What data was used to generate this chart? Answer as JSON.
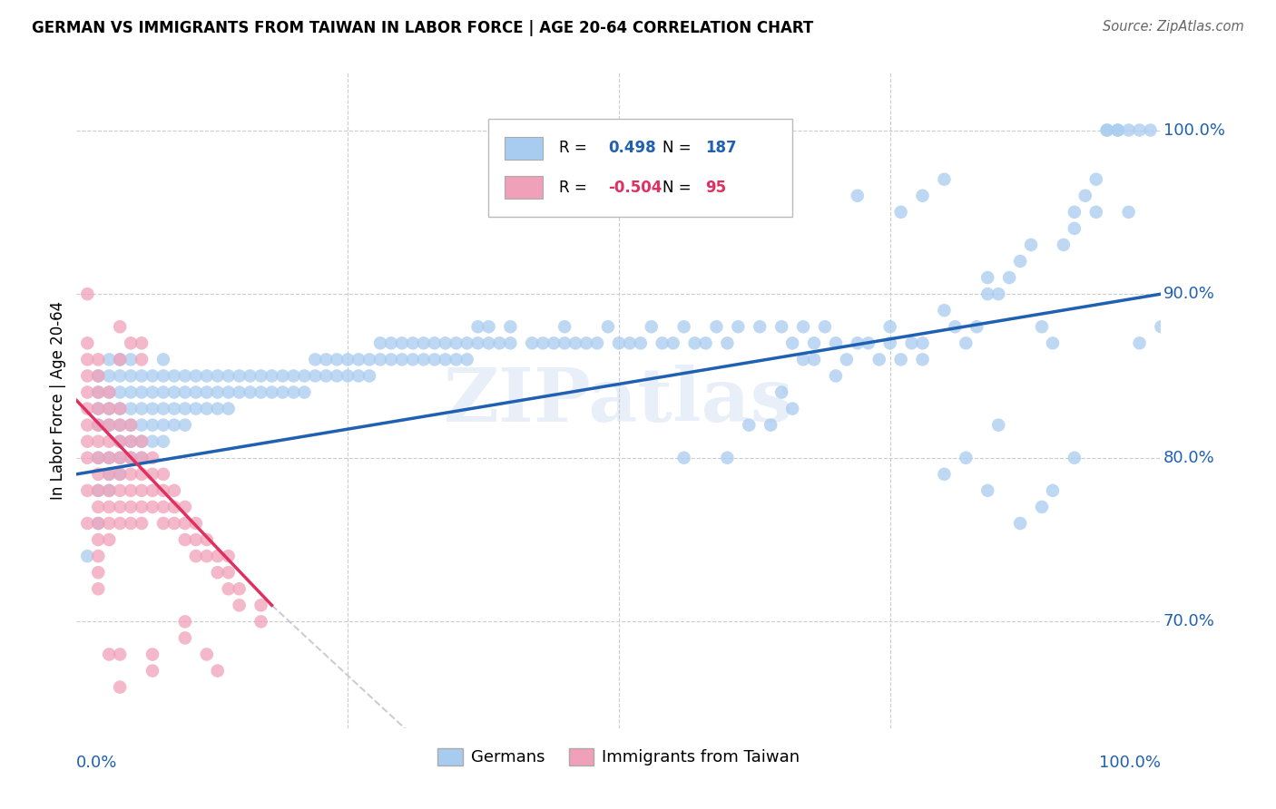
{
  "title": "GERMAN VS IMMIGRANTS FROM TAIWAN IN LABOR FORCE | AGE 20-64 CORRELATION CHART",
  "source": "Source: ZipAtlas.com",
  "ylabel": "In Labor Force | Age 20-64",
  "y_tick_labels": [
    "70.0%",
    "80.0%",
    "90.0%",
    "100.0%"
  ],
  "y_tick_positions": [
    0.7,
    0.8,
    0.9,
    1.0
  ],
  "xlim": [
    0.0,
    1.0
  ],
  "ylim": [
    0.635,
    1.035
  ],
  "blue_R": "0.498",
  "blue_N": "187",
  "pink_R": "-0.504",
  "pink_N": "95",
  "blue_color": "#A8CCF0",
  "pink_color": "#F0A0B8",
  "blue_line_color": "#2060B0",
  "pink_line_color": "#E03060",
  "pink_dash_color": "#C0C0D0",
  "watermark": "ZIPatlas",
  "legend_bottom_labels": [
    "Germans",
    "Immigrants from Taiwan"
  ],
  "blue_scatter": [
    [
      0.01,
      0.74
    ],
    [
      0.02,
      0.76
    ],
    [
      0.02,
      0.78
    ],
    [
      0.02,
      0.8
    ],
    [
      0.02,
      0.82
    ],
    [
      0.02,
      0.83
    ],
    [
      0.02,
      0.84
    ],
    [
      0.02,
      0.85
    ],
    [
      0.03,
      0.78
    ],
    [
      0.03,
      0.79
    ],
    [
      0.03,
      0.8
    ],
    [
      0.03,
      0.82
    ],
    [
      0.03,
      0.83
    ],
    [
      0.03,
      0.84
    ],
    [
      0.03,
      0.85
    ],
    [
      0.03,
      0.86
    ],
    [
      0.04,
      0.79
    ],
    [
      0.04,
      0.8
    ],
    [
      0.04,
      0.81
    ],
    [
      0.04,
      0.82
    ],
    [
      0.04,
      0.83
    ],
    [
      0.04,
      0.84
    ],
    [
      0.04,
      0.85
    ],
    [
      0.04,
      0.86
    ],
    [
      0.05,
      0.8
    ],
    [
      0.05,
      0.81
    ],
    [
      0.05,
      0.82
    ],
    [
      0.05,
      0.83
    ],
    [
      0.05,
      0.84
    ],
    [
      0.05,
      0.85
    ],
    [
      0.05,
      0.86
    ],
    [
      0.06,
      0.8
    ],
    [
      0.06,
      0.81
    ],
    [
      0.06,
      0.82
    ],
    [
      0.06,
      0.83
    ],
    [
      0.06,
      0.84
    ],
    [
      0.06,
      0.85
    ],
    [
      0.07,
      0.81
    ],
    [
      0.07,
      0.82
    ],
    [
      0.07,
      0.83
    ],
    [
      0.07,
      0.84
    ],
    [
      0.07,
      0.85
    ],
    [
      0.08,
      0.81
    ],
    [
      0.08,
      0.82
    ],
    [
      0.08,
      0.83
    ],
    [
      0.08,
      0.84
    ],
    [
      0.08,
      0.85
    ],
    [
      0.08,
      0.86
    ],
    [
      0.09,
      0.82
    ],
    [
      0.09,
      0.83
    ],
    [
      0.09,
      0.84
    ],
    [
      0.09,
      0.85
    ],
    [
      0.1,
      0.82
    ],
    [
      0.1,
      0.83
    ],
    [
      0.1,
      0.84
    ],
    [
      0.1,
      0.85
    ],
    [
      0.11,
      0.83
    ],
    [
      0.11,
      0.84
    ],
    [
      0.11,
      0.85
    ],
    [
      0.12,
      0.83
    ],
    [
      0.12,
      0.84
    ],
    [
      0.12,
      0.85
    ],
    [
      0.13,
      0.83
    ],
    [
      0.13,
      0.84
    ],
    [
      0.13,
      0.85
    ],
    [
      0.14,
      0.83
    ],
    [
      0.14,
      0.84
    ],
    [
      0.14,
      0.85
    ],
    [
      0.15,
      0.84
    ],
    [
      0.15,
      0.85
    ],
    [
      0.16,
      0.84
    ],
    [
      0.16,
      0.85
    ],
    [
      0.17,
      0.84
    ],
    [
      0.17,
      0.85
    ],
    [
      0.18,
      0.84
    ],
    [
      0.18,
      0.85
    ],
    [
      0.19,
      0.84
    ],
    [
      0.19,
      0.85
    ],
    [
      0.2,
      0.84
    ],
    [
      0.2,
      0.85
    ],
    [
      0.21,
      0.84
    ],
    [
      0.21,
      0.85
    ],
    [
      0.22,
      0.85
    ],
    [
      0.22,
      0.86
    ],
    [
      0.23,
      0.85
    ],
    [
      0.23,
      0.86
    ],
    [
      0.24,
      0.85
    ],
    [
      0.24,
      0.86
    ],
    [
      0.25,
      0.85
    ],
    [
      0.25,
      0.86
    ],
    [
      0.26,
      0.85
    ],
    [
      0.26,
      0.86
    ],
    [
      0.27,
      0.85
    ],
    [
      0.27,
      0.86
    ],
    [
      0.28,
      0.86
    ],
    [
      0.28,
      0.87
    ],
    [
      0.29,
      0.86
    ],
    [
      0.29,
      0.87
    ],
    [
      0.3,
      0.86
    ],
    [
      0.3,
      0.87
    ],
    [
      0.31,
      0.86
    ],
    [
      0.31,
      0.87
    ],
    [
      0.32,
      0.86
    ],
    [
      0.32,
      0.87
    ],
    [
      0.33,
      0.86
    ],
    [
      0.33,
      0.87
    ],
    [
      0.34,
      0.86
    ],
    [
      0.34,
      0.87
    ],
    [
      0.35,
      0.86
    ],
    [
      0.35,
      0.87
    ],
    [
      0.36,
      0.86
    ],
    [
      0.36,
      0.87
    ],
    [
      0.37,
      0.87
    ],
    [
      0.37,
      0.88
    ],
    [
      0.38,
      0.87
    ],
    [
      0.38,
      0.88
    ],
    [
      0.39,
      0.87
    ],
    [
      0.4,
      0.87
    ],
    [
      0.4,
      0.88
    ],
    [
      0.42,
      0.87
    ],
    [
      0.43,
      0.87
    ],
    [
      0.44,
      0.87
    ],
    [
      0.45,
      0.87
    ],
    [
      0.45,
      0.88
    ],
    [
      0.46,
      0.87
    ],
    [
      0.47,
      0.87
    ],
    [
      0.48,
      0.87
    ],
    [
      0.49,
      0.88
    ],
    [
      0.5,
      0.87
    ],
    [
      0.51,
      0.87
    ],
    [
      0.52,
      0.87
    ],
    [
      0.53,
      0.88
    ],
    [
      0.54,
      0.87
    ],
    [
      0.55,
      0.87
    ],
    [
      0.56,
      0.88
    ],
    [
      0.57,
      0.87
    ],
    [
      0.58,
      0.87
    ],
    [
      0.59,
      0.88
    ],
    [
      0.6,
      0.87
    ],
    [
      0.61,
      0.88
    ],
    [
      0.63,
      0.88
    ],
    [
      0.65,
      0.88
    ],
    [
      0.66,
      0.87
    ],
    [
      0.67,
      0.88
    ],
    [
      0.68,
      0.87
    ],
    [
      0.69,
      0.88
    ],
    [
      0.7,
      0.87
    ],
    [
      0.56,
      0.8
    ],
    [
      0.6,
      0.8
    ],
    [
      0.62,
      0.82
    ],
    [
      0.64,
      0.82
    ],
    [
      0.65,
      0.84
    ],
    [
      0.66,
      0.83
    ],
    [
      0.67,
      0.86
    ],
    [
      0.68,
      0.86
    ],
    [
      0.7,
      0.85
    ],
    [
      0.71,
      0.86
    ],
    [
      0.72,
      0.87
    ],
    [
      0.73,
      0.87
    ],
    [
      0.74,
      0.86
    ],
    [
      0.75,
      0.88
    ],
    [
      0.75,
      0.87
    ],
    [
      0.76,
      0.86
    ],
    [
      0.77,
      0.87
    ],
    [
      0.78,
      0.87
    ],
    [
      0.78,
      0.86
    ],
    [
      0.8,
      0.89
    ],
    [
      0.81,
      0.88
    ],
    [
      0.82,
      0.87
    ],
    [
      0.83,
      0.88
    ],
    [
      0.84,
      0.9
    ],
    [
      0.84,
      0.91
    ],
    [
      0.85,
      0.9
    ],
    [
      0.86,
      0.91
    ],
    [
      0.87,
      0.92
    ],
    [
      0.88,
      0.93
    ],
    [
      0.89,
      0.88
    ],
    [
      0.9,
      0.87
    ],
    [
      0.91,
      0.93
    ],
    [
      0.92,
      0.94
    ],
    [
      0.92,
      0.95
    ],
    [
      0.93,
      0.96
    ],
    [
      0.94,
      0.95
    ],
    [
      0.94,
      0.97
    ],
    [
      0.95,
      1.0
    ],
    [
      0.95,
      1.0
    ],
    [
      0.96,
      1.0
    ],
    [
      0.96,
      1.0
    ],
    [
      0.97,
      0.95
    ],
    [
      0.97,
      1.0
    ],
    [
      0.98,
      0.87
    ],
    [
      0.98,
      1.0
    ],
    [
      0.99,
      1.0
    ],
    [
      1.0,
      0.88
    ],
    [
      0.72,
      0.96
    ],
    [
      0.76,
      0.95
    ],
    [
      0.78,
      0.96
    ],
    [
      0.8,
      0.97
    ],
    [
      0.8,
      0.79
    ],
    [
      0.82,
      0.8
    ],
    [
      0.84,
      0.78
    ],
    [
      0.85,
      0.82
    ],
    [
      0.87,
      0.76
    ],
    [
      0.89,
      0.77
    ],
    [
      0.9,
      0.78
    ],
    [
      0.92,
      0.8
    ]
  ],
  "pink_scatter": [
    [
      0.01,
      0.84
    ],
    [
      0.01,
      0.85
    ],
    [
      0.01,
      0.86
    ],
    [
      0.01,
      0.87
    ],
    [
      0.01,
      0.76
    ],
    [
      0.01,
      0.9
    ],
    [
      0.01,
      0.82
    ],
    [
      0.01,
      0.83
    ],
    [
      0.01,
      0.8
    ],
    [
      0.01,
      0.78
    ],
    [
      0.01,
      0.81
    ],
    [
      0.02,
      0.83
    ],
    [
      0.02,
      0.84
    ],
    [
      0.02,
      0.85
    ],
    [
      0.02,
      0.86
    ],
    [
      0.02,
      0.8
    ],
    [
      0.02,
      0.79
    ],
    [
      0.02,
      0.82
    ],
    [
      0.02,
      0.81
    ],
    [
      0.02,
      0.78
    ],
    [
      0.02,
      0.77
    ],
    [
      0.02,
      0.76
    ],
    [
      0.02,
      0.75
    ],
    [
      0.02,
      0.74
    ],
    [
      0.02,
      0.73
    ],
    [
      0.02,
      0.72
    ],
    [
      0.03,
      0.83
    ],
    [
      0.03,
      0.84
    ],
    [
      0.03,
      0.82
    ],
    [
      0.03,
      0.81
    ],
    [
      0.03,
      0.8
    ],
    [
      0.03,
      0.79
    ],
    [
      0.03,
      0.78
    ],
    [
      0.03,
      0.77
    ],
    [
      0.03,
      0.76
    ],
    [
      0.03,
      0.75
    ],
    [
      0.04,
      0.82
    ],
    [
      0.04,
      0.83
    ],
    [
      0.04,
      0.81
    ],
    [
      0.04,
      0.8
    ],
    [
      0.04,
      0.79
    ],
    [
      0.04,
      0.78
    ],
    [
      0.04,
      0.77
    ],
    [
      0.04,
      0.76
    ],
    [
      0.05,
      0.81
    ],
    [
      0.05,
      0.82
    ],
    [
      0.05,
      0.8
    ],
    [
      0.05,
      0.79
    ],
    [
      0.05,
      0.78
    ],
    [
      0.05,
      0.77
    ],
    [
      0.05,
      0.76
    ],
    [
      0.06,
      0.8
    ],
    [
      0.06,
      0.81
    ],
    [
      0.06,
      0.79
    ],
    [
      0.06,
      0.78
    ],
    [
      0.06,
      0.77
    ],
    [
      0.06,
      0.76
    ],
    [
      0.07,
      0.79
    ],
    [
      0.07,
      0.8
    ],
    [
      0.07,
      0.78
    ],
    [
      0.07,
      0.77
    ],
    [
      0.08,
      0.79
    ],
    [
      0.08,
      0.78
    ],
    [
      0.08,
      0.77
    ],
    [
      0.08,
      0.76
    ],
    [
      0.09,
      0.78
    ],
    [
      0.09,
      0.77
    ],
    [
      0.09,
      0.76
    ],
    [
      0.1,
      0.77
    ],
    [
      0.1,
      0.76
    ],
    [
      0.1,
      0.75
    ],
    [
      0.11,
      0.76
    ],
    [
      0.11,
      0.75
    ],
    [
      0.11,
      0.74
    ],
    [
      0.12,
      0.75
    ],
    [
      0.12,
      0.74
    ],
    [
      0.13,
      0.74
    ],
    [
      0.13,
      0.73
    ],
    [
      0.14,
      0.73
    ],
    [
      0.14,
      0.72
    ],
    [
      0.14,
      0.74
    ],
    [
      0.15,
      0.72
    ],
    [
      0.15,
      0.71
    ],
    [
      0.17,
      0.7
    ],
    [
      0.17,
      0.71
    ],
    [
      0.03,
      0.68
    ],
    [
      0.04,
      0.68
    ],
    [
      0.04,
      0.66
    ],
    [
      0.07,
      0.67
    ],
    [
      0.07,
      0.68
    ],
    [
      0.1,
      0.69
    ],
    [
      0.1,
      0.7
    ],
    [
      0.12,
      0.68
    ],
    [
      0.13,
      0.67
    ],
    [
      0.04,
      0.88
    ],
    [
      0.05,
      0.87
    ],
    [
      0.04,
      0.86
    ],
    [
      0.06,
      0.86
    ],
    [
      0.06,
      0.87
    ]
  ],
  "blue_line_pts": [
    [
      0.0,
      0.79
    ],
    [
      1.0,
      0.9
    ]
  ],
  "pink_line_solid_pts": [
    [
      0.0,
      0.835
    ],
    [
      0.18,
      0.71
    ]
  ],
  "pink_line_dash_pts": [
    [
      0.18,
      0.71
    ],
    [
      0.8,
      0.33
    ]
  ]
}
